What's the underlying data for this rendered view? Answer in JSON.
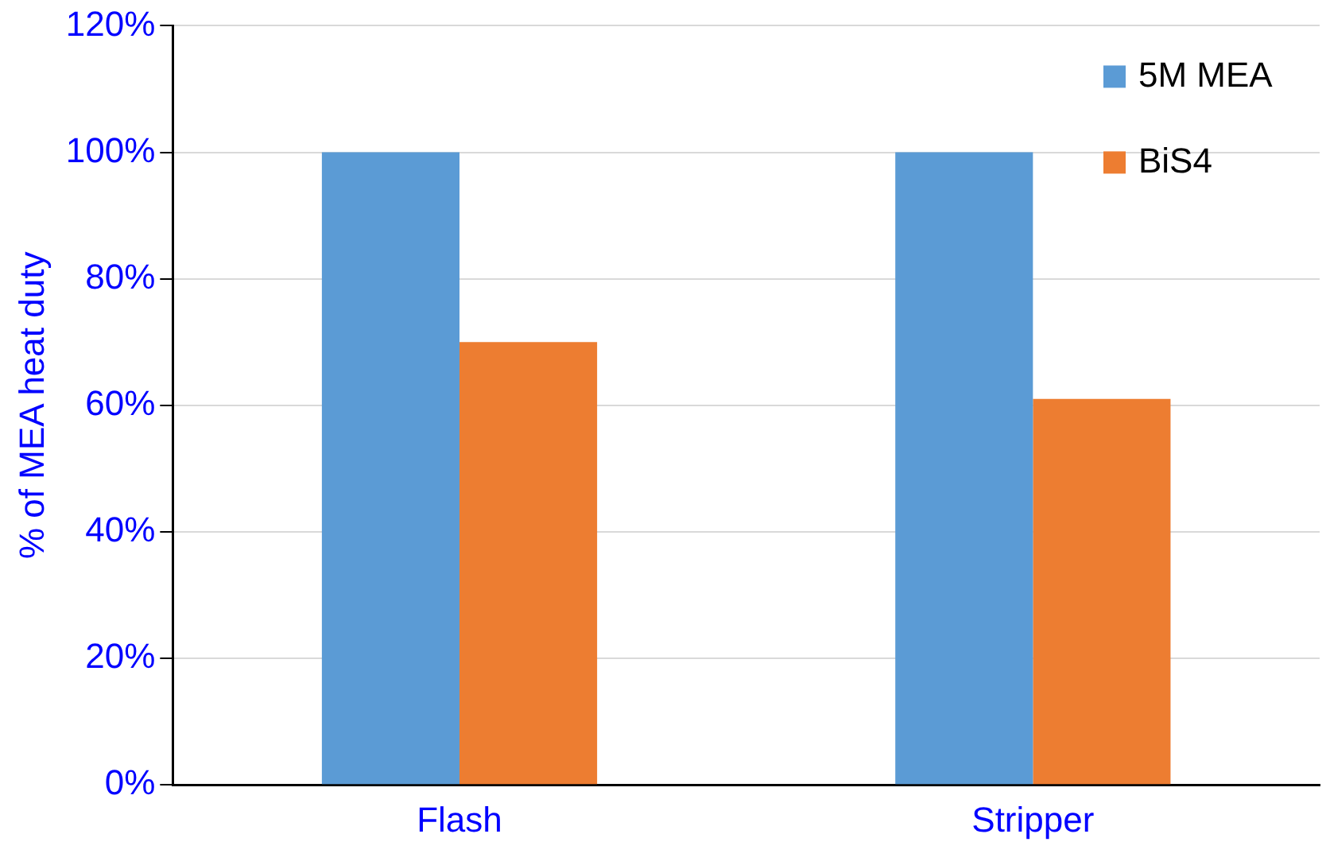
{
  "chart_data": {
    "type": "bar",
    "ylabel": "% of MEA heat duty",
    "categories": [
      "Flash",
      "Stripper"
    ],
    "series": [
      {
        "name": "5M MEA",
        "color": "#5b9bd5",
        "values": [
          100,
          100
        ]
      },
      {
        "name": "BiS4",
        "color": "#ed7d31",
        "values": [
          70,
          61
        ]
      }
    ],
    "ylim": [
      0,
      120
    ],
    "yticks": [
      {
        "value": 0,
        "label": "0%"
      },
      {
        "value": 20,
        "label": "20%"
      },
      {
        "value": 40,
        "label": "40%"
      },
      {
        "value": 60,
        "label": "60%"
      },
      {
        "value": 80,
        "label": "80%"
      },
      {
        "value": 100,
        "label": "100%"
      },
      {
        "value": 120,
        "label": "120%"
      }
    ],
    "grid": "y",
    "legend": "top right"
  }
}
